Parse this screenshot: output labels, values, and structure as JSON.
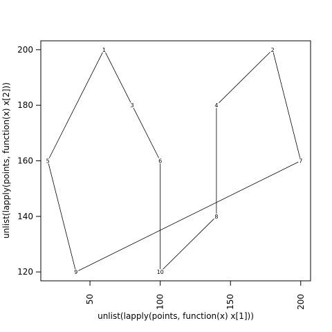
{
  "chart_data": {
    "type": "line",
    "title": "",
    "xlabel": "unlist(lapply(points, function(x) x[1]))",
    "ylabel": "unlist(lapply(points, function(x) x[2]))",
    "xlim": [
      15,
      207
    ],
    "ylim": [
      116.8,
      203.2
    ],
    "x_ticks": [
      50,
      100,
      150,
      200
    ],
    "y_ticks": [
      120,
      140,
      160,
      180,
      200
    ],
    "grid": false,
    "points": [
      {
        "label": "1",
        "x": 60,
        "y": 200
      },
      {
        "label": "2",
        "x": 180,
        "y": 200
      },
      {
        "label": "3",
        "x": 80,
        "y": 180
      },
      {
        "label": "4",
        "x": 140,
        "y": 180
      },
      {
        "label": "5",
        "x": 20,
        "y": 160
      },
      {
        "label": "6",
        "x": 100,
        "y": 160
      },
      {
        "label": "7",
        "x": 200,
        "y": 160
      },
      {
        "label": "8",
        "x": 140,
        "y": 140
      },
      {
        "label": "9",
        "x": 40,
        "y": 120
      },
      {
        "label": "10",
        "x": 100,
        "y": 120
      }
    ],
    "path_order": [
      "1",
      "5",
      "9",
      "7",
      "2",
      "4",
      "8",
      "10",
      "6",
      "3",
      "1"
    ],
    "line_color": "#000000"
  }
}
